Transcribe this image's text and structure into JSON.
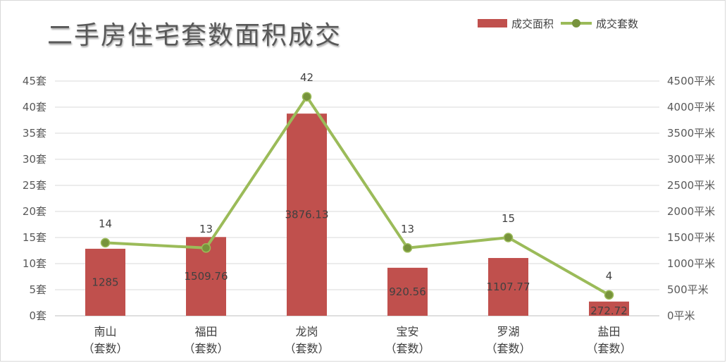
{
  "chart_data": {
    "type": "bar",
    "title": "二手房住宅套数面积成交",
    "categories": [
      "南山\n（套数）",
      "福田\n（套数）",
      "龙岗\n（套数）",
      "宝安\n（套数）",
      "罗湖\n（套数）",
      "盐田\n（套数）"
    ],
    "series": [
      {
        "name": "成交面积",
        "type": "bar",
        "axis": "right",
        "values": [
          1285,
          1509.76,
          3876.13,
          920.56,
          1107.77,
          272.72
        ],
        "color": "#c0504d"
      },
      {
        "name": "成交套数",
        "type": "line",
        "axis": "left",
        "values": [
          14,
          13,
          42,
          13,
          15,
          4
        ],
        "color": "#9bbb59",
        "marker_color": "#77933c"
      }
    ],
    "left_axis": {
      "ticks": [
        "0套",
        "5套",
        "10套",
        "15套",
        "20套",
        "25套",
        "30套",
        "35套",
        "40套",
        "45套"
      ],
      "ylim": [
        0,
        45
      ]
    },
    "right_axis": {
      "ticks": [
        "0平米",
        "500平米",
        "1000平米",
        "1500平米",
        "2000平米",
        "2500平米",
        "3000平米",
        "3500平米",
        "4000平米",
        "4500平米"
      ],
      "ylim": [
        0,
        4500
      ]
    },
    "grid": true,
    "legend_position": "top-right"
  }
}
